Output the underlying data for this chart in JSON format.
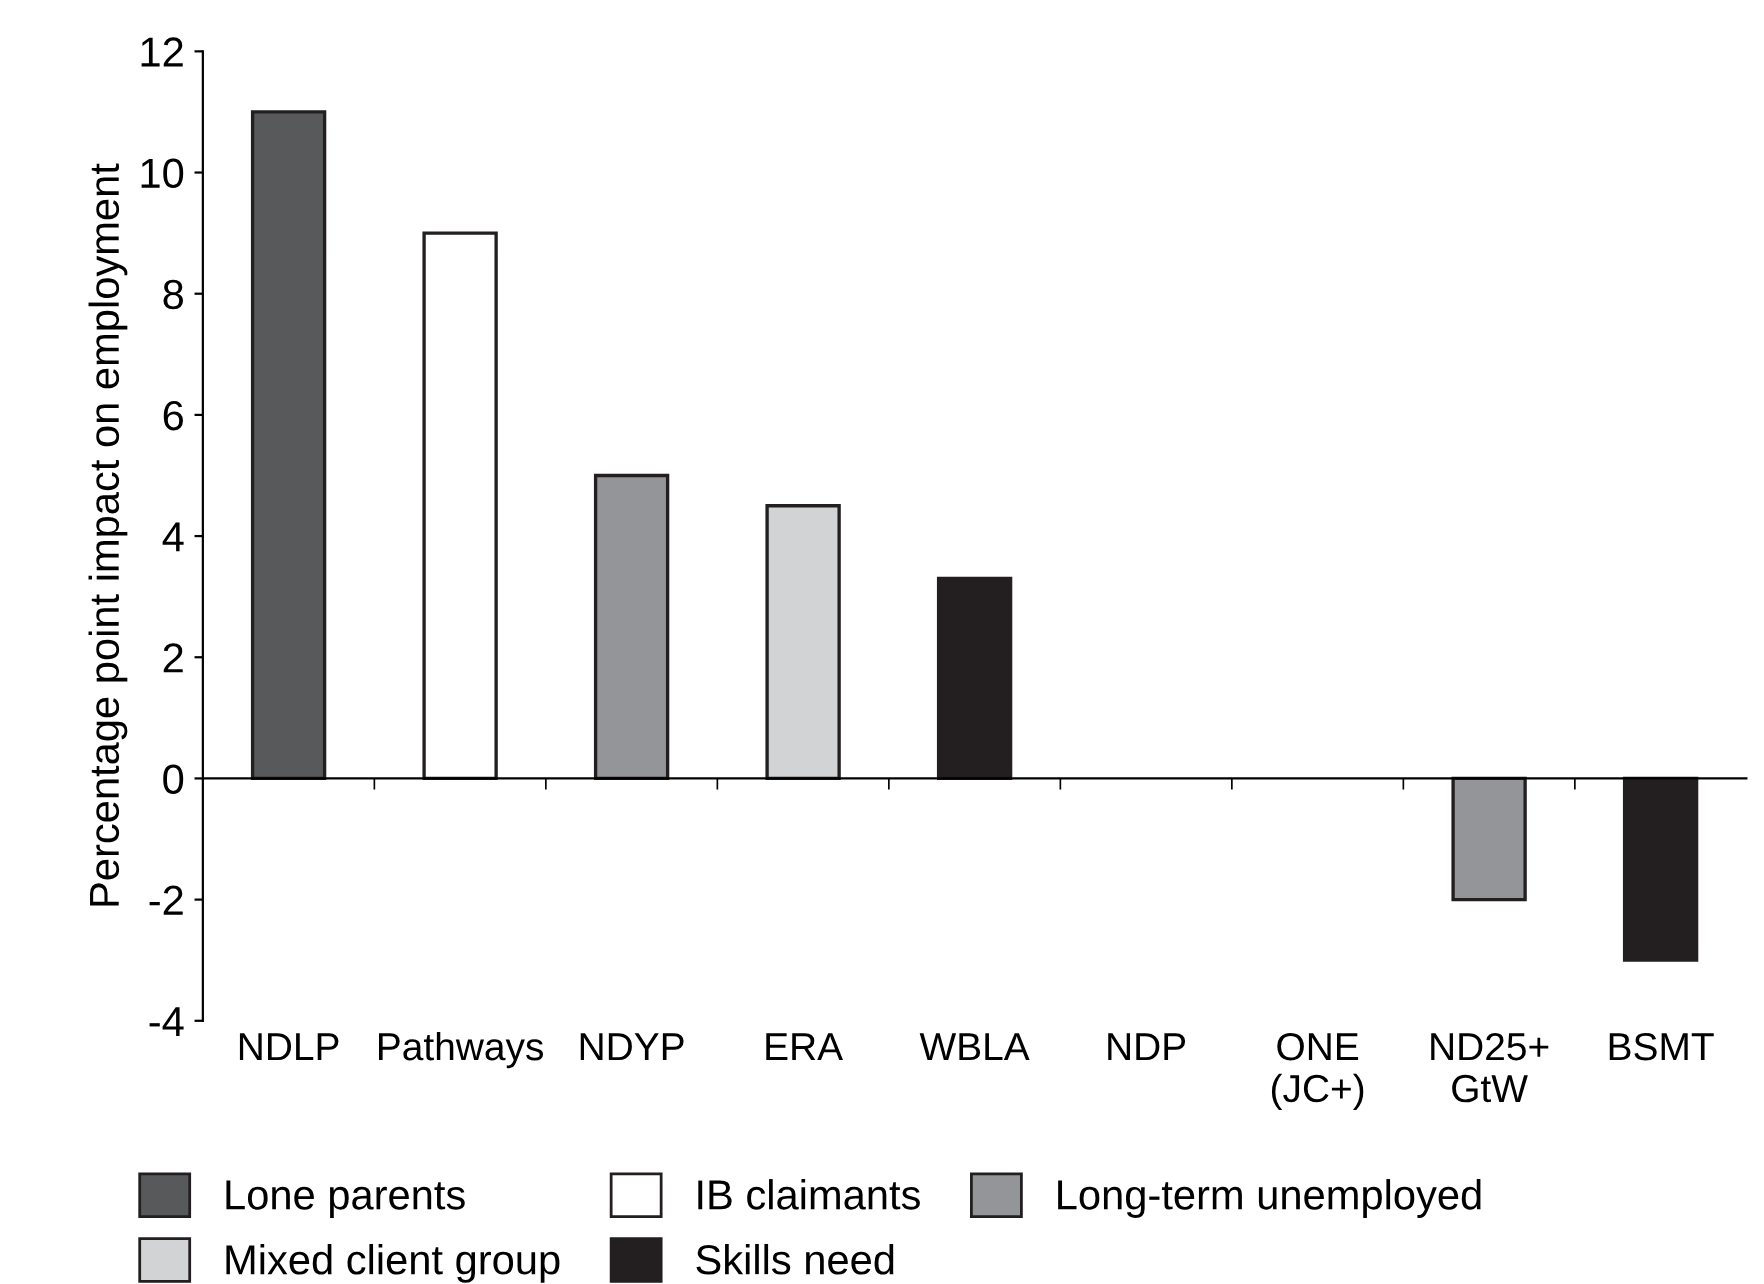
{
  "chart_data": {
    "type": "bar",
    "ylabel": "Percentage point impact on employment",
    "categories": [
      "NDLP",
      "Pathways",
      "NDYP",
      "ERA",
      "WBLA",
      "NDP",
      "ONE\n(JC+)",
      "ND25+\nGtW",
      "BSMT"
    ],
    "series": [
      {
        "name": "Lone parents",
        "color": "#58595b",
        "values": [
          11,
          null,
          null,
          null,
          null,
          null,
          null,
          null,
          null
        ]
      },
      {
        "name": "IB claimants",
        "color": "#ffffff",
        "values": [
          null,
          9,
          null,
          null,
          null,
          null,
          null,
          null,
          null
        ]
      },
      {
        "name": "Long-term unemployed",
        "color": "#939598",
        "values": [
          null,
          null,
          5,
          null,
          null,
          null,
          null,
          -2,
          null
        ]
      },
      {
        "name": "Mixed client group",
        "color": "#d1d3d4",
        "values": [
          null,
          null,
          null,
          4.5,
          null,
          null,
          null,
          null,
          null
        ]
      },
      {
        "name": "Skills need",
        "color": "#231f20",
        "values": [
          null,
          null,
          null,
          null,
          3.3,
          null,
          null,
          null,
          -3
        ]
      }
    ],
    "ylim": [
      -4,
      12
    ],
    "yticks": [
      -4,
      -2,
      0,
      2,
      4,
      6,
      8,
      10,
      12
    ],
    "legend": "bottom"
  }
}
